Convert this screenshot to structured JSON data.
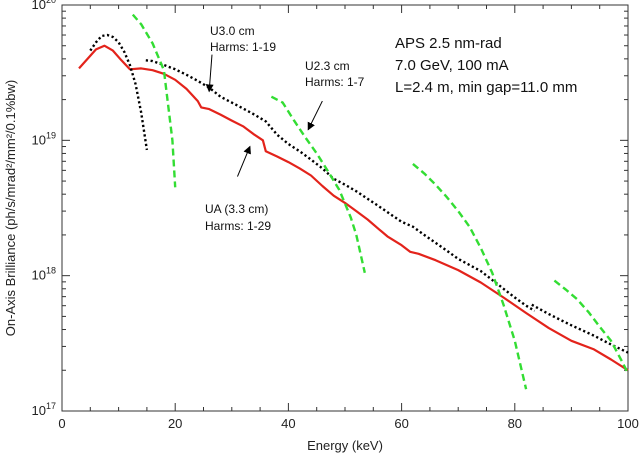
{
  "chart_data": {
    "type": "line",
    "xlabel": "Energy (keV)",
    "ylabel": "On-Axis Brilliance (ph/s/mrad²/mm²/0.1%bw)",
    "x_ticks": [
      "0",
      "20",
      "40",
      "60",
      "80",
      "100"
    ],
    "y_tick_labels": [
      {
        "base": "10",
        "exp": "17",
        "value": 1e+17
      },
      {
        "base": "10",
        "exp": "18",
        "value": 1e+18
      },
      {
        "base": "10",
        "exp": "19",
        "value": 1e+19
      },
      {
        "base": "10",
        "exp": "20",
        "value": 1e+20
      }
    ],
    "xlim": [
      0,
      100
    ],
    "ylim": [
      1e+17,
      1e+20
    ],
    "y_scale": "log",
    "grid": false,
    "info_lines": [
      "APS 2.5 nm-rad",
      "7.0 GeV, 100 mA",
      "L=2.4 m, min gap=11.0 mm"
    ],
    "annotations": [
      {
        "lines": [
          "U3.0 cm",
          "Harms: 1-19"
        ],
        "arrow_from": [
          26.5,
          4.3e+19
        ],
        "arrow_to": [
          26.0,
          2.3e+19
        ]
      },
      {
        "lines": [
          "U2.3 cm",
          "Harms: 1-7"
        ],
        "arrow_from": [
          46.0,
          1.95e+19
        ],
        "arrow_to": [
          43.5,
          1.2e+19
        ]
      },
      {
        "lines": [
          "UA (3.3 cm)",
          "Harms: 1-29"
        ],
        "arrow_from": [
          31.0,
          5.4e+18
        ],
        "arrow_to": [
          33.2,
          9e+18
        ]
      }
    ],
    "series": [
      {
        "color": "#e3231b",
        "style": "solid",
        "points": [
          [
            3.0,
            3.4e+19
          ],
          [
            4.5,
            4e+19
          ],
          [
            6.0,
            4.7e+19
          ],
          [
            7.5,
            5e+19
          ],
          [
            9.0,
            4.6e+19
          ],
          [
            10.5,
            3.9e+19
          ],
          [
            12.0,
            3.35e+19
          ],
          [
            14.0,
            3.4e+19
          ],
          [
            16.0,
            3.3e+19
          ],
          [
            18.0,
            3.1e+19
          ],
          [
            20.0,
            2.8e+19
          ],
          [
            22.0,
            2.4e+19
          ],
          [
            24.0,
            1.95e+19
          ],
          [
            24.6,
            1.75e+19
          ],
          [
            26.0,
            1.7e+19
          ],
          [
            28.0,
            1.55e+19
          ],
          [
            30.0,
            1.4e+19
          ],
          [
            32.0,
            1.27e+19
          ],
          [
            34.0,
            1.1e+19
          ],
          [
            35.5,
            1e+19
          ],
          [
            36.0,
            8.3e+18
          ],
          [
            38.0,
            7.6e+18
          ],
          [
            40.0,
            6.9e+18
          ],
          [
            42.0,
            6.2e+18
          ],
          [
            44.0,
            5.5e+18
          ],
          [
            46.0,
            4.6e+18
          ],
          [
            48.0,
            3.9e+18
          ],
          [
            50.0,
            3.45e+18
          ],
          [
            52.0,
            3e+18
          ],
          [
            54.0,
            2.6e+18
          ],
          [
            56.0,
            2.2e+18
          ],
          [
            57.5,
            1.95e+18
          ],
          [
            60.0,
            1.68e+18
          ],
          [
            61.5,
            1.5e+18
          ],
          [
            63.0,
            1.45e+18
          ],
          [
            66.0,
            1.3e+18
          ],
          [
            70.0,
            1.1e+18
          ],
          [
            74.0,
            8.9e+17
          ],
          [
            78.0,
            6.9e+17
          ],
          [
            82.0,
            5.3e+17
          ],
          [
            86.0,
            4.1e+17
          ],
          [
            90.0,
            3.3e+17
          ],
          [
            94.0,
            2.85e+17
          ],
          [
            97.0,
            2.4e+17
          ],
          [
            100.0,
            2e+17
          ]
        ]
      },
      {
        "color": "#000000",
        "style": "dotted",
        "segments": [
          [
            [
              5.0,
              4.6e+19
            ],
            [
              6.0,
              5.3e+19
            ],
            [
              7.0,
              5.9e+19
            ],
            [
              8.0,
              6e+19
            ],
            [
              9.0,
              5.8e+19
            ],
            [
              10.0,
              5.3e+19
            ],
            [
              11.0,
              4.5e+19
            ],
            [
              12.0,
              3.6e+19
            ],
            [
              13.0,
              2.6e+19
            ],
            [
              14.0,
              1.6e+19
            ],
            [
              15.0,
              8.5e+18
            ]
          ],
          [
            [
              14.8,
              3.9e+19
            ],
            [
              16.0,
              3.85e+19
            ],
            [
              18.0,
              3.6e+19
            ],
            [
              20.0,
              3.35e+19
            ],
            [
              22.0,
              3.05e+19
            ],
            [
              24.0,
              2.75e+19
            ],
            [
              26.0,
              2.45e+19
            ],
            [
              28.0,
              2.1e+19
            ],
            [
              30.0,
              1.9e+19
            ],
            [
              32.0,
              1.72e+19
            ],
            [
              34.0,
              1.55e+19
            ],
            [
              36.0,
              1.38e+19
            ],
            [
              38.0,
              1.1e+19
            ],
            [
              40.0,
              9.4e+18
            ],
            [
              42.0,
              8.3e+18
            ],
            [
              44.0,
              7.2e+18
            ],
            [
              46.0,
              6.2e+18
            ],
            [
              48.0,
              5.2e+18
            ],
            [
              50.0,
              4.7e+18
            ],
            [
              52.0,
              4.2e+18
            ],
            [
              54.0,
              3.7e+18
            ],
            [
              56.0,
              3.25e+18
            ],
            [
              58.0,
              2.85e+18
            ],
            [
              60.0,
              2.5e+18
            ],
            [
              62.0,
              2.3e+18
            ],
            [
              64.0,
              2e+18
            ],
            [
              66.0,
              1.75e+18
            ],
            [
              68.0,
              1.53e+18
            ],
            [
              70.0,
              1.33e+18
            ],
            [
              72.0,
              1.2e+18
            ],
            [
              74.0,
              1.08e+18
            ],
            [
              76.0,
              9.3e+17
            ],
            [
              78.0,
              8e+17
            ],
            [
              80.0,
              6.9e+17
            ],
            [
              82.0,
              6e+17
            ],
            [
              83.5,
              5.5e+17
            ]
          ],
          [
            [
              83.0,
              6.1e+17
            ],
            [
              86.0,
              5.2e+17
            ],
            [
              90.0,
              4.3e+17
            ],
            [
              94.0,
              3.6e+17
            ],
            [
              97.0,
              3.1e+17
            ],
            [
              100.0,
              2.7e+17
            ]
          ]
        ]
      },
      {
        "color": "#33dd33",
        "style": "dashed",
        "segments": [
          [
            [
              12.5,
              8.5e+19
            ],
            [
              14.0,
              7.2e+19
            ],
            [
              16.0,
              5.2e+19
            ],
            [
              18.0,
              3.3e+19
            ],
            [
              19.5,
              1e+19
            ],
            [
              20.0,
              4.5e+18
            ]
          ],
          [
            [
              37.0,
              2.1e+19
            ],
            [
              39.0,
              1.9e+19
            ],
            [
              41.0,
              1.4e+19
            ],
            [
              43.0,
              1.05e+19
            ],
            [
              45.0,
              8e+18
            ],
            [
              47.0,
              5.9e+18
            ],
            [
              49.0,
              4.3e+18
            ],
            [
              51.0,
              2.7e+18
            ],
            [
              52.0,
              2e+18
            ],
            [
              53.5,
              1.05e+18
            ]
          ],
          [
            [
              62.0,
              6.7e+18
            ],
            [
              64.0,
              5.7e+18
            ],
            [
              66.0,
              4.7e+18
            ],
            [
              68.0,
              3.8e+18
            ],
            [
              70.0,
              3e+18
            ],
            [
              72.0,
              2.3e+18
            ],
            [
              74.0,
              1.6e+18
            ],
            [
              76.0,
              1.05e+18
            ],
            [
              78.0,
              6.1e+17
            ],
            [
              80.0,
              3.3e+17
            ],
            [
              82.0,
              1.45e+17
            ]
          ],
          [
            [
              87.0,
              9.2e+17
            ],
            [
              89.0,
              7.9e+17
            ],
            [
              91.0,
              6.7e+17
            ],
            [
              93.0,
              5.4e+17
            ],
            [
              95.0,
              4.2e+17
            ],
            [
              97.0,
              3.3e+17
            ],
            [
              99.0,
              2.3e+17
            ],
            [
              100.0,
              1.9e+17
            ]
          ]
        ]
      }
    ]
  }
}
